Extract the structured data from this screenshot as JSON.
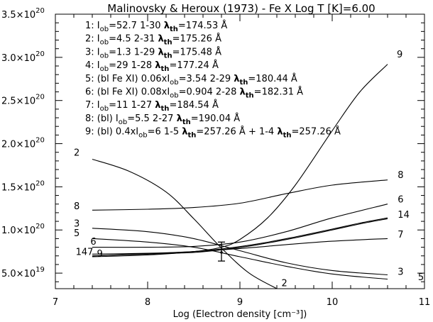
{
  "chart_data": {
    "type": "line",
    "title": "Malinovsky & Heroux (1973) - Fe X  Log T [K]=6.00",
    "xlabel": "Log (Electron density [cm⁻³])",
    "ylabel": "",
    "xlim": [
      7,
      11
    ],
    "ylim": [
      3.2e+19,
      3.5e+20
    ],
    "grid": false,
    "x_ticks": [
      {
        "value": 7,
        "label": "7"
      },
      {
        "value": 8,
        "label": "8"
      },
      {
        "value": 9,
        "label": "9"
      },
      {
        "value": 10,
        "label": "10"
      },
      {
        "value": 11,
        "label": "11"
      }
    ],
    "y_ticks": [
      {
        "value": 5e+19,
        "mant": "5.0×10",
        "exp": "19"
      },
      {
        "value": 1e+20,
        "mant": "1.0×10",
        "exp": "20"
      },
      {
        "value": 1.5e+20,
        "mant": "1.5×10",
        "exp": "20"
      },
      {
        "value": 2e+20,
        "mant": "2.0×10",
        "exp": "20"
      },
      {
        "value": 2.5e+20,
        "mant": "2.5×10",
        "exp": "20"
      },
      {
        "value": 3e+20,
        "mant": "3.0×10",
        "exp": "20"
      },
      {
        "value": 3.5e+20,
        "mant": "3.5×10",
        "exp": "20"
      }
    ],
    "legend": [
      [
        {
          "t": "1: I"
        },
        {
          "t": "ob",
          "s": "sub"
        },
        {
          "t": "=52.7 1-30 "
        },
        {
          "t": "λ",
          "s": "bold"
        },
        {
          "t": "th",
          "s": "subbold"
        },
        {
          "t": "=174.53 Å"
        }
      ],
      [
        {
          "t": "2: I"
        },
        {
          "t": "ob",
          "s": "sub"
        },
        {
          "t": "=4.5 2-31 "
        },
        {
          "t": "λ",
          "s": "bold"
        },
        {
          "t": "th",
          "s": "subbold"
        },
        {
          "t": "=175.26 Å"
        }
      ],
      [
        {
          "t": "3: I"
        },
        {
          "t": "ob",
          "s": "sub"
        },
        {
          "t": "=1.3 1-29 "
        },
        {
          "t": "λ",
          "s": "bold"
        },
        {
          "t": "th",
          "s": "subbold"
        },
        {
          "t": "=175.48 Å"
        }
      ],
      [
        {
          "t": "4: I"
        },
        {
          "t": "ob",
          "s": "sub"
        },
        {
          "t": "=29 1-28 "
        },
        {
          "t": "λ",
          "s": "bold"
        },
        {
          "t": "th",
          "s": "subbold"
        },
        {
          "t": "=177.24 Å"
        }
      ],
      [
        {
          "t": "5: (bl Fe XI) 0.06xI"
        },
        {
          "t": "ob",
          "s": "sub"
        },
        {
          "t": "=3.54 2-29 "
        },
        {
          "t": "λ",
          "s": "bold"
        },
        {
          "t": "th",
          "s": "subbold"
        },
        {
          "t": "=180.44 Å"
        }
      ],
      [
        {
          "t": "6: (bl Fe XI) 0.08xI"
        },
        {
          "t": "ob",
          "s": "sub"
        },
        {
          "t": "=0.904 2-28 "
        },
        {
          "t": "λ",
          "s": "bold"
        },
        {
          "t": "th",
          "s": "subbold"
        },
        {
          "t": "=182.31 Å"
        }
      ],
      [
        {
          "t": "7: I"
        },
        {
          "t": "ob",
          "s": "sub"
        },
        {
          "t": "=11 1-27 "
        },
        {
          "t": "λ",
          "s": "bold"
        },
        {
          "t": "th",
          "s": "subbold"
        },
        {
          "t": "=184.54 Å"
        }
      ],
      [
        {
          "t": "8: (bl) I"
        },
        {
          "t": "ob",
          "s": "sub"
        },
        {
          "t": "=5.5 2-27 "
        },
        {
          "t": "λ",
          "s": "bold"
        },
        {
          "t": "th",
          "s": "subbold"
        },
        {
          "t": "=190.04 Å"
        }
      ],
      [
        {
          "t": "9: (bl) 0.4xI"
        },
        {
          "t": "ob",
          "s": "sub"
        },
        {
          "t": "=6  1-5 "
        },
        {
          "t": "λ",
          "s": "bold"
        },
        {
          "t": "th",
          "s": "subbold"
        },
        {
          "t": "=257.26 Å + 1-4 "
        },
        {
          "t": "λ",
          "s": "bold"
        },
        {
          "t": "th",
          "s": "subbold"
        },
        {
          "t": "=257.26 Å"
        }
      ]
    ],
    "series": [
      {
        "name": "1",
        "x": [
          7.4,
          8.0,
          8.5,
          8.8,
          9.2,
          9.6,
          10.0,
          10.3,
          10.6
        ],
        "y": [
          7e+19,
          7.2e+19,
          7.4e+19,
          7.7e+19,
          8.3e+19,
          9.1e+19,
          1e+20,
          1.07e+20,
          1.13e+20
        ]
      },
      {
        "name": "2",
        "x": [
          7.4,
          7.8,
          8.2,
          8.5,
          8.8,
          9.1,
          9.4
        ],
        "y": [
          1.82e+20,
          1.68e+20,
          1.44e+20,
          1.13e+20,
          7.9e+19,
          5e+19,
          3.2e+19
        ]
      },
      {
        "name": "3",
        "x": [
          7.4,
          8.0,
          8.5,
          9.0,
          9.5,
          10.0,
          10.6
        ],
        "y": [
          1.02e+20,
          9.8e+19,
          9e+19,
          7.6e+19,
          6.2e+19,
          5.3e+19,
          4.8e+19
        ]
      },
      {
        "name": "4",
        "x": [
          7.4,
          8.0,
          8.5,
          8.8,
          9.2,
          9.6,
          10.0,
          10.3,
          10.6
        ],
        "y": [
          7e+19,
          7.25e+19,
          7.5e+19,
          7.8e+19,
          8.4e+19,
          9.2e+19,
          1.01e+20,
          1.08e+20,
          1.14e+20
        ]
      },
      {
        "name": "5",
        "x": [
          7.4,
          8.0,
          8.5,
          9.0,
          9.5,
          10.0,
          10.6
        ],
        "y": [
          9e+19,
          8.6e+19,
          8e+19,
          6.9e+19,
          5.8e+19,
          4.9e+19,
          4.3e+19
        ]
      },
      {
        "name": "6",
        "x": [
          7.4,
          8.0,
          8.5,
          9.0,
          9.5,
          10.0,
          10.6
        ],
        "y": [
          8e+19,
          8e+19,
          8.1e+19,
          8.6e+19,
          9.8e+19,
          1.14e+20,
          1.3e+20
        ]
      },
      {
        "name": "7",
        "x": [
          7.4,
          8.0,
          8.5,
          9.0,
          9.5,
          10.0,
          10.6
        ],
        "y": [
          7.2e+19,
          7.3e+19,
          7.5e+19,
          7.85e+19,
          8.3e+19,
          8.7e+19,
          9e+19
        ]
      },
      {
        "name": "8",
        "x": [
          7.4,
          8.0,
          8.5,
          9.0,
          9.5,
          10.0,
          10.6
        ],
        "y": [
          1.23e+20,
          1.24e+20,
          1.26e+20,
          1.31e+20,
          1.42e+20,
          1.52e+20,
          1.58e+20
        ]
      },
      {
        "name": "9",
        "x": [
          7.4,
          8.0,
          8.5,
          8.8,
          9.0,
          9.3,
          9.6,
          10.0,
          10.3,
          10.6
        ],
        "y": [
          6.9e+19,
          7.1e+19,
          7.5e+19,
          8e+19,
          8.9e+19,
          1.14e+20,
          1.52e+20,
          2.15e+20,
          2.6e+20,
          2.92e+20
        ]
      }
    ],
    "series_labels": [
      {
        "text": "2",
        "x": 7.2,
        "y": 1.86e+20
      },
      {
        "text": "8",
        "x": 7.2,
        "y": 1.24e+20
      },
      {
        "text": "3",
        "x": 7.2,
        "y": 1.04e+20
      },
      {
        "text": "5",
        "x": 7.2,
        "y": 9.3e+19
      },
      {
        "text": "6",
        "x": 7.38,
        "y": 8.3e+19
      },
      {
        "text": "147",
        "x": 7.22,
        "y": 7.1e+19
      },
      {
        "text": "9",
        "x": 7.45,
        "y": 6.9e+19
      },
      {
        "text": "9",
        "x": 10.7,
        "y": 3e+20
      },
      {
        "text": "8",
        "x": 10.71,
        "y": 1.6e+20
      },
      {
        "text": "6",
        "x": 10.71,
        "y": 1.32e+20
      },
      {
        "text": "14",
        "x": 10.71,
        "y": 1.14e+20
      },
      {
        "text": "7",
        "x": 10.71,
        "y": 9.1e+19
      },
      {
        "text": "3",
        "x": 10.71,
        "y": 4.8e+19
      },
      {
        "text": "5",
        "x": 10.93,
        "y": 4.2e+19
      },
      {
        "text": "2",
        "x": 9.45,
        "y": 3.5e+19
      }
    ],
    "observed": {
      "x": 8.8,
      "y": 7.4e+19,
      "ylow": 6.4e+19,
      "yhigh": 8.6e+19
    }
  }
}
